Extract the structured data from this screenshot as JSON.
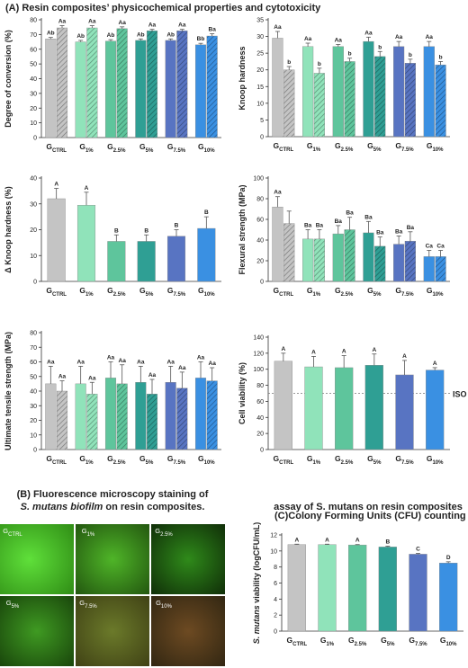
{
  "panel_a_title": "(A) Resin composites’ physicochemical properties and cytotoxicity",
  "panel_b": {
    "title_line1": "(B) Fluorescence microscopy staining of",
    "title_italic": "S. mutans biofilm",
    "title_rest": " on resin composites.",
    "images": [
      {
        "main": "G",
        "sub": "CTRL"
      },
      {
        "main": "G",
        "sub": "1%"
      },
      {
        "main": "G",
        "sub": "2.5%"
      },
      {
        "main": "G",
        "sub": "5%"
      },
      {
        "main": "G",
        "sub": "7.5%"
      },
      {
        "main": "G",
        "sub": "10%"
      }
    ]
  },
  "chart_data": [
    {
      "type": "bar",
      "ylabel": "Degree of conversion (%)",
      "ylim": [
        0,
        80
      ],
      "yticks": [
        0,
        10,
        20,
        30,
        40,
        50,
        60,
        70,
        80
      ],
      "categories": [
        {
          "main": "G",
          "sub": "CTRL"
        },
        {
          "main": "G",
          "sub": "1%"
        },
        {
          "main": "G",
          "sub": "2.5%"
        },
        {
          "main": "G",
          "sub": "5%"
        },
        {
          "main": "G",
          "sub": "7.5%"
        },
        {
          "main": "G",
          "sub": "10%"
        }
      ],
      "colors": [
        "#c4c4c4",
        "#90e3ba",
        "#5ec59c",
        "#2f9f94",
        "#5874c2",
        "#3a90e2"
      ],
      "series": [
        {
          "values": [
            67,
            65,
            65.5,
            66,
            66,
            63
          ],
          "errors": [
            1,
            1,
            1,
            1,
            1,
            1
          ],
          "labels": [
            "Ab",
            "Ab",
            "Ab",
            "Ab",
            "Ab",
            "Bb"
          ]
        },
        {
          "hatch": true,
          "values": [
            74.5,
            74.5,
            74,
            72.5,
            72.5,
            69
          ],
          "errors": [
            1.5,
            1.5,
            1.2,
            1,
            1,
            1.5
          ],
          "labels": [
            "Aa",
            "Aa",
            "Aa",
            "Aa",
            "Aa",
            "Ba"
          ]
        }
      ]
    },
    {
      "type": "bar",
      "ylabel": "Knoop hardness",
      "ylim": [
        0,
        35
      ],
      "yticks": [
        0,
        5,
        10,
        15,
        20,
        25,
        30,
        35
      ],
      "categories": [
        {
          "main": "G",
          "sub": "CTRL"
        },
        {
          "main": "G",
          "sub": "1%"
        },
        {
          "main": "G",
          "sub": "2.5%"
        },
        {
          "main": "G",
          "sub": "5%"
        },
        {
          "main": "G",
          "sub": "7.5%"
        },
        {
          "main": "G",
          "sub": "10%"
        }
      ],
      "colors": [
        "#c4c4c4",
        "#90e3ba",
        "#5ec59c",
        "#2f9f94",
        "#5874c2",
        "#3a90e2"
      ],
      "series": [
        {
          "values": [
            29.5,
            27,
            27,
            28.5,
            27,
            27
          ],
          "errors": [
            2,
            1,
            0.6,
            1.3,
            1.5,
            1.5
          ],
          "labels": [
            "Aa",
            "Aa",
            "Aa",
            "Aa",
            "Aa",
            "Aa"
          ]
        },
        {
          "hatch": true,
          "values": [
            20,
            19,
            22.5,
            24,
            22,
            21.5
          ],
          "errors": [
            1,
            1.5,
            1,
            1.5,
            1.2,
            1
          ],
          "labels": [
            "b",
            "b",
            "b",
            "b",
            "b",
            "b"
          ]
        }
      ]
    },
    {
      "type": "bar",
      "ylabel": "Δ Knoop hardness (%)",
      "ylim": [
        0,
        40
      ],
      "yticks": [
        0,
        10,
        20,
        30,
        40
      ],
      "categories": [
        {
          "main": "G",
          "sub": "CTRL"
        },
        {
          "main": "G",
          "sub": "1%"
        },
        {
          "main": "G",
          "sub": "2.5%"
        },
        {
          "main": "G",
          "sub": "5%"
        },
        {
          "main": "G",
          "sub": "7.5%"
        },
        {
          "main": "G",
          "sub": "10%"
        }
      ],
      "colors": [
        "#c4c4c4",
        "#90e3ba",
        "#5ec59c",
        "#2f9f94",
        "#5874c2",
        "#3a90e2"
      ],
      "series": [
        {
          "values": [
            32,
            29.5,
            15.5,
            15.5,
            17.5,
            20.5
          ],
          "errors": [
            4,
            5,
            2.5,
            2.5,
            2.5,
            4.5
          ],
          "labels": [
            "A",
            "A",
            "B",
            "B",
            "B",
            "B"
          ]
        }
      ]
    },
    {
      "type": "bar",
      "ylabel": "Flexural strength (MPa)",
      "ylim": [
        0,
        100
      ],
      "yticks": [
        0,
        20,
        40,
        60,
        80,
        100
      ],
      "categories": [
        {
          "main": "G",
          "sub": "CTRL"
        },
        {
          "main": "G",
          "sub": "1%"
        },
        {
          "main": "G",
          "sub": "2.5%"
        },
        {
          "main": "G",
          "sub": "5%"
        },
        {
          "main": "G",
          "sub": "7.5%"
        },
        {
          "main": "G",
          "sub": "10%"
        }
      ],
      "colors": [
        "#c4c4c4",
        "#90e3ba",
        "#5ec59c",
        "#2f9f94",
        "#5874c2",
        "#3a90e2"
      ],
      "series": [
        {
          "values": [
            72,
            41,
            46,
            47,
            36,
            24
          ],
          "errors": [
            10,
            9,
            8,
            11,
            8,
            6
          ],
          "labels": [
            "Aa",
            "Ba",
            "Ba",
            "Ba",
            "Ba",
            "Ca"
          ]
        },
        {
          "hatch": true,
          "values": [
            56,
            41,
            50,
            34,
            39,
            24
          ],
          "errors": [
            12,
            9,
            12,
            9,
            9,
            6
          ],
          "labels": [
            null,
            "Ba",
            "Ba",
            "Ba",
            "Ba",
            "Ca"
          ]
        }
      ]
    },
    {
      "type": "bar",
      "ylabel": "Ultimate tensile strength (MPa)",
      "ylim": [
        0,
        80
      ],
      "yticks": [
        0,
        10,
        20,
        30,
        40,
        50,
        60,
        70,
        80
      ],
      "categories": [
        {
          "main": "G",
          "sub": "CTRL"
        },
        {
          "main": "G",
          "sub": "1%"
        },
        {
          "main": "G",
          "sub": "2.5%"
        },
        {
          "main": "G",
          "sub": "5%"
        },
        {
          "main": "G",
          "sub": "7.5%"
        },
        {
          "main": "G",
          "sub": "10%"
        }
      ],
      "colors": [
        "#c4c4c4",
        "#90e3ba",
        "#5ec59c",
        "#2f9f94",
        "#5874c2",
        "#3a90e2"
      ],
      "series": [
        {
          "values": [
            45,
            45,
            49,
            46,
            46,
            49
          ],
          "errors": [
            12,
            12,
            11,
            11,
            11,
            11
          ],
          "labels": [
            "Aa",
            "Aa",
            "Aa",
            "Aa",
            "Aa",
            "Aa"
          ]
        },
        {
          "hatch": true,
          "values": [
            40,
            38,
            45,
            38,
            42,
            47
          ],
          "errors": [
            7,
            8,
            13,
            10,
            11,
            9
          ],
          "labels": [
            "Aa",
            "Aa",
            "Aa",
            "Aa",
            "Aa",
            "Aa"
          ]
        }
      ]
    },
    {
      "type": "bar",
      "ylabel": "Cell viability (%)",
      "ylim": [
        0,
        140
      ],
      "yticks": [
        0,
        20,
        40,
        60,
        80,
        100,
        120,
        140
      ],
      "reference": {
        "value": 70,
        "label": "ISO"
      },
      "categories": [
        {
          "main": "G",
          "sub": "CTRL"
        },
        {
          "main": "G",
          "sub": "1%"
        },
        {
          "main": "G",
          "sub": "2.5%"
        },
        {
          "main": "G",
          "sub": "5%"
        },
        {
          "main": "G",
          "sub": "7.5%"
        },
        {
          "main": "G",
          "sub": "10%"
        }
      ],
      "colors": [
        "#c4c4c4",
        "#90e3ba",
        "#5ec59c",
        "#2f9f94",
        "#5874c2",
        "#3a90e2"
      ],
      "series": [
        {
          "values": [
            110,
            103,
            102,
            105,
            93,
            99
          ],
          "errors": [
            10,
            13,
            15,
            14,
            18,
            3
          ],
          "labels": [
            "A",
            "A",
            "A",
            "A",
            "A",
            "A"
          ]
        }
      ]
    },
    {
      "type": "bar",
      "title": [
        "Colony Forming Units (CFU) counting",
        "assay of S. mutans on resin composites"
      ],
      "title_prefix": "(C)",
      "ylabel_italic": "S. mutans",
      "ylabel": " viability (logCFU/mL)",
      "ylim": [
        0,
        12
      ],
      "yticks": [
        0,
        2,
        4,
        6,
        8,
        10,
        12
      ],
      "categories": [
        {
          "main": "G",
          "sub": "CTRL"
        },
        {
          "main": "G",
          "sub": "1%"
        },
        {
          "main": "G",
          "sub": "2.5%"
        },
        {
          "main": "G",
          "sub": "5%"
        },
        {
          "main": "G",
          "sub": "7.5%"
        },
        {
          "main": "G",
          "sub": "10%"
        }
      ],
      "colors": [
        "#c4c4c4",
        "#90e3ba",
        "#5ec59c",
        "#2f9f94",
        "#5874c2",
        "#3a90e2"
      ],
      "series": [
        {
          "values": [
            10.8,
            10.8,
            10.75,
            10.5,
            9.6,
            8.5
          ],
          "errors": [
            0.05,
            0.05,
            0.05,
            0.1,
            0.1,
            0.15
          ],
          "labels": [
            "A",
            "A",
            "A",
            "B",
            "C",
            "D"
          ]
        }
      ]
    }
  ]
}
